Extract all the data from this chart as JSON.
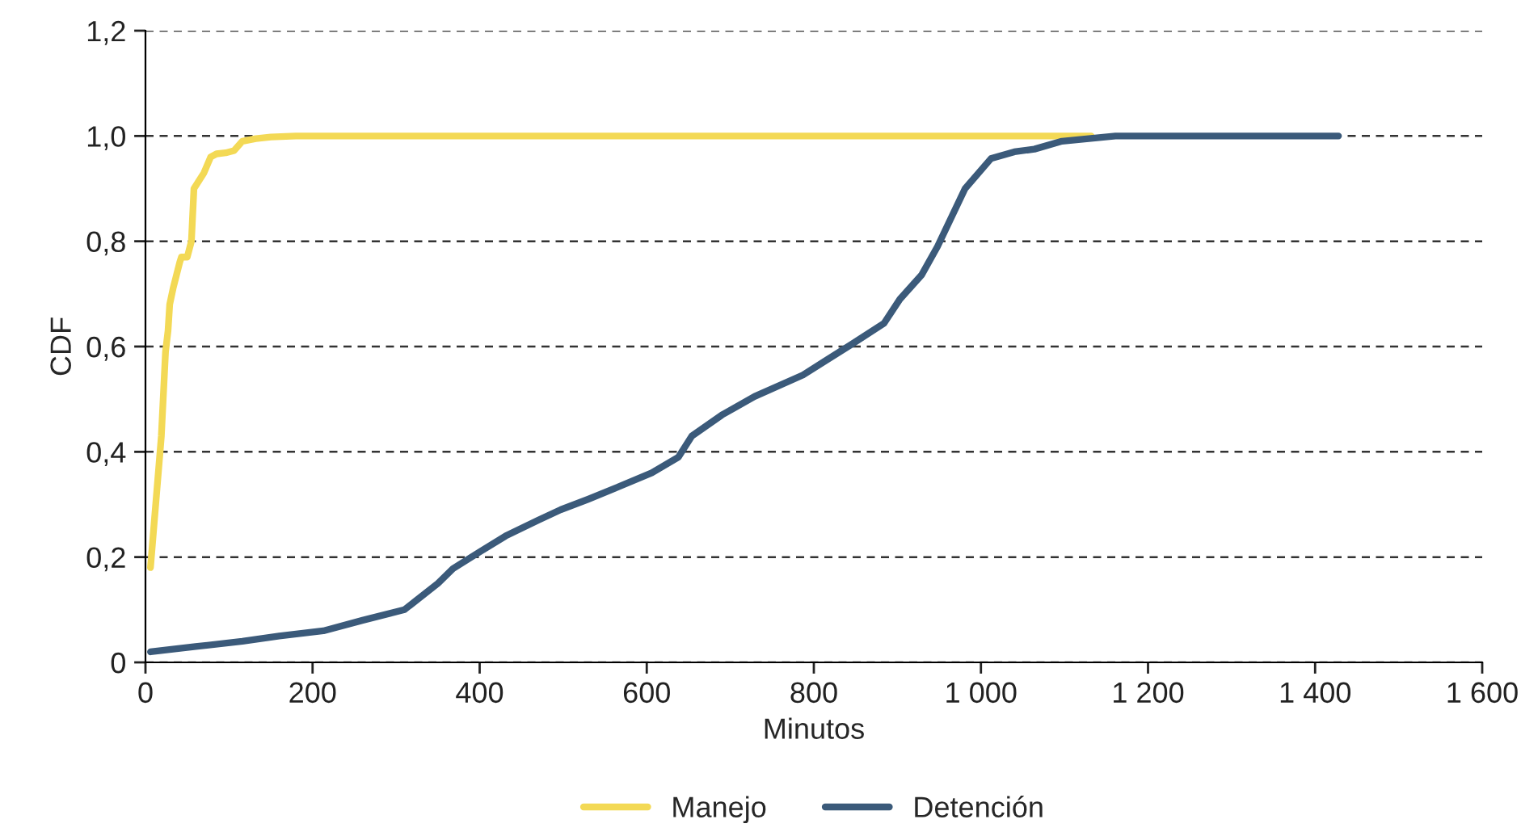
{
  "chart_data": {
    "type": "line",
    "xlabel": "Minutos",
    "ylabel": "CDF",
    "xlim": [
      0,
      1600
    ],
    "ylim": [
      0,
      1.2
    ],
    "xticks": [
      0,
      200,
      400,
      600,
      800,
      {
        "value": 1000,
        "label": "1 000"
      },
      {
        "value": 1200,
        "label": "1 200"
      },
      {
        "value": 1400,
        "label": "1 400"
      },
      {
        "value": 1600,
        "label": "1 600"
      }
    ],
    "yticks": [
      0,
      {
        "value": 0.2,
        "label": "0,2"
      },
      {
        "value": 0.4,
        "label": "0,4"
      },
      {
        "value": 0.6,
        "label": "0,6"
      },
      {
        "value": 0.8,
        "label": "0,8"
      },
      {
        "value": 1.0,
        "label": "1,0"
      },
      {
        "value": 1.2,
        "label": "1,2"
      }
    ],
    "grid": "y",
    "legend": "bottom",
    "marker": "none",
    "line_style": "solid",
    "series": [
      {
        "name": "Manejo",
        "color": "#f3d955",
        "x": [
          6,
          19,
          24,
          27,
          29,
          33,
          41,
          43,
          50,
          55,
          58,
          64,
          70,
          78,
          85,
          96,
          106,
          116,
          132,
          150,
          180,
          300,
          600,
          900,
          1132
        ],
        "values": [
          0.18,
          0.43,
          0.59,
          0.63,
          0.68,
          0.71,
          0.76,
          0.77,
          0.77,
          0.8,
          0.9,
          0.915,
          0.93,
          0.96,
          0.966,
          0.968,
          0.972,
          0.99,
          0.995,
          0.998,
          1.0,
          1.0,
          1.0,
          1.0,
          1.0
        ]
      },
      {
        "name": "Detención",
        "color": "#3b5a7a",
        "x": [
          6,
          60,
          116,
          160,
          213,
          260,
          310,
          350,
          368,
          400,
          431,
          470,
          497,
          530,
          561,
          606,
          638,
          654,
          690,
          729,
          787,
          845,
          884,
          903,
          929,
          948,
          981,
          1012,
          1040,
          1064,
          1097,
          1161,
          1300,
          1428
        ],
        "values": [
          0.02,
          0.03,
          0.04,
          0.05,
          0.06,
          0.08,
          0.1,
          0.15,
          0.178,
          0.21,
          0.24,
          0.27,
          0.29,
          0.31,
          0.33,
          0.36,
          0.39,
          0.43,
          0.47,
          0.505,
          0.546,
          0.604,
          0.644,
          0.69,
          0.736,
          0.79,
          0.9,
          0.957,
          0.97,
          0.975,
          0.99,
          1.0,
          1.0,
          1.0
        ]
      }
    ]
  }
}
